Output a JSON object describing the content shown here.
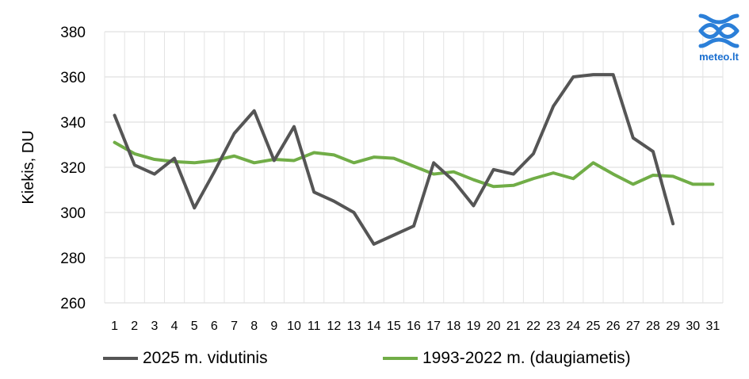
{
  "logo": {
    "icon": "meteo-wave-icon",
    "text": "meteo.lt",
    "color": "#2b7fd8"
  },
  "chart_data": {
    "type": "line",
    "title": "",
    "xlabel": "",
    "ylabel": "Kiekis, DU",
    "ylim": [
      260,
      380
    ],
    "yticks": [
      260,
      280,
      300,
      320,
      340,
      360,
      380
    ],
    "x": [
      1,
      2,
      3,
      4,
      5,
      6,
      7,
      8,
      9,
      10,
      11,
      12,
      13,
      14,
      15,
      16,
      17,
      18,
      19,
      20,
      21,
      22,
      23,
      24,
      25,
      26,
      27,
      28,
      29,
      30,
      31
    ],
    "grid": true,
    "legend_position": "bottom",
    "series": [
      {
        "name": "2025 m. vidutinis",
        "color": "#555555",
        "values": [
          343,
          321,
          317,
          324,
          302,
          318,
          335,
          345,
          323,
          338,
          309,
          305,
          300,
          286,
          290,
          294,
          322,
          314,
          303,
          319,
          317,
          326,
          347,
          360,
          361,
          361,
          333,
          327,
          295,
          null,
          null
        ]
      },
      {
        "name": "1993-2022 m. (daugiametis)",
        "color": "#71ad47",
        "values": [
          331,
          326,
          323.5,
          322.5,
          322,
          323,
          325,
          322,
          323.5,
          323,
          326.5,
          325.5,
          322,
          324.5,
          324,
          320.5,
          317,
          318,
          314.5,
          311.5,
          312,
          315,
          317.5,
          315,
          322,
          317,
          312.5,
          316.5,
          316,
          312.5,
          312.5
        ]
      }
    ]
  }
}
